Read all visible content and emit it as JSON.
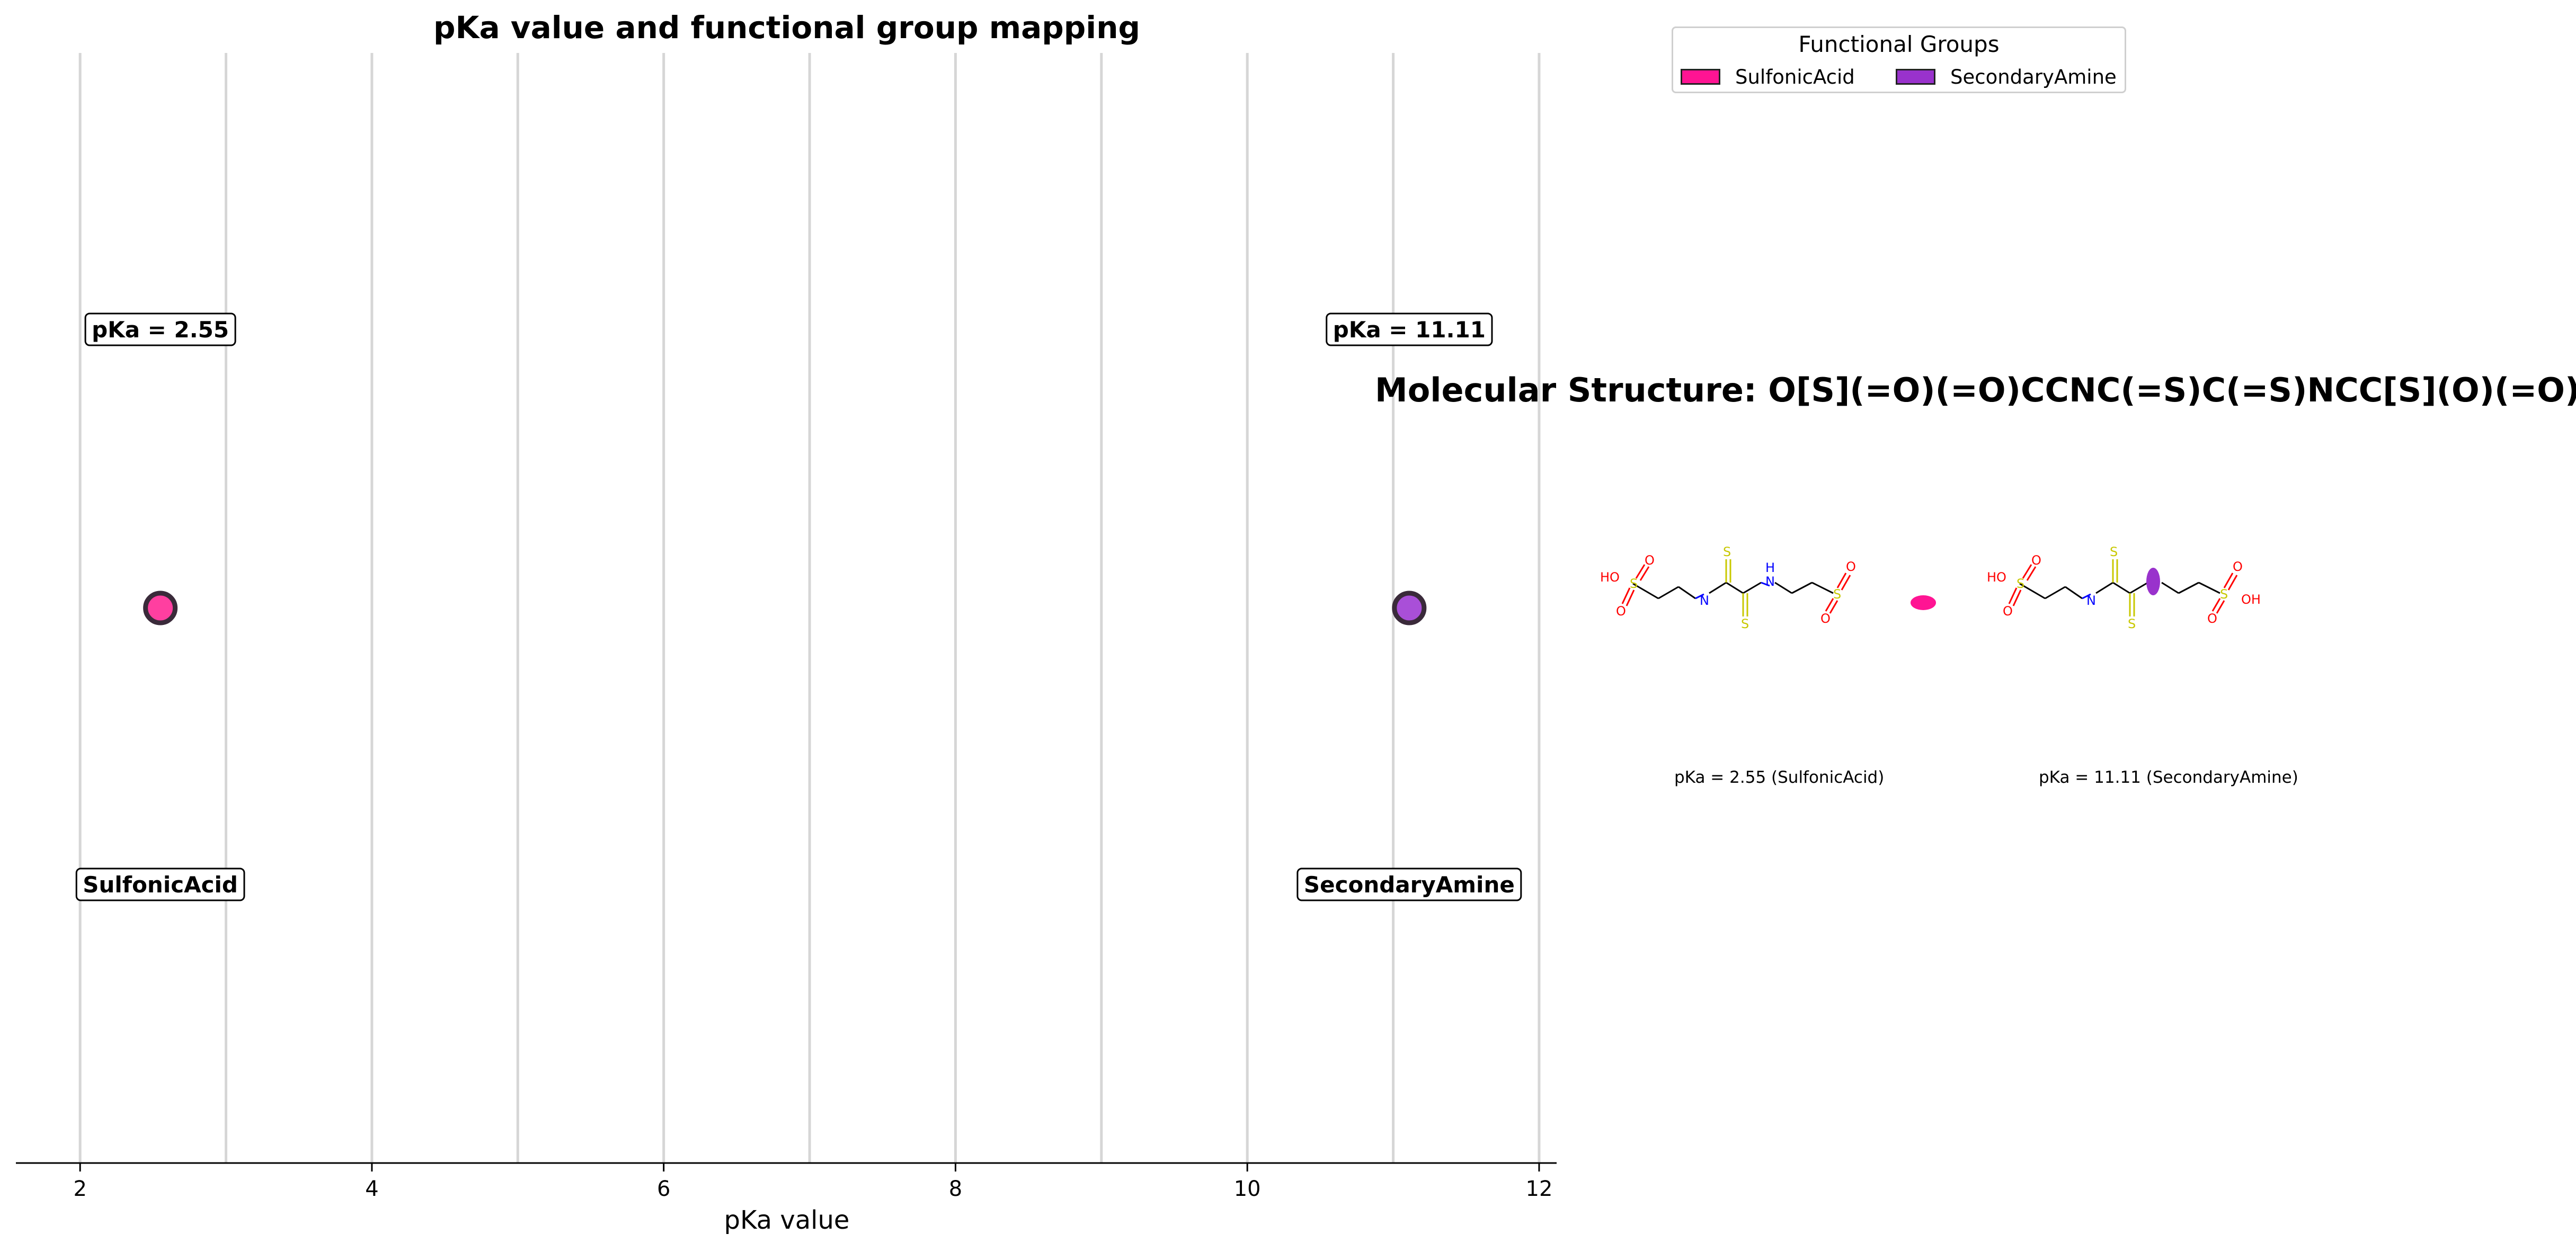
{
  "chart_data": {
    "type": "scatter",
    "title": "pKa value and functional group mapping",
    "xlabel": "pKa value",
    "xlim": [
      1.56,
      12.12
    ],
    "xticks": [
      2,
      4,
      6,
      8,
      10,
      12
    ],
    "grid": "vertical",
    "points": [
      {
        "x": 2.55,
        "group": "SulfonicAcid",
        "value_label": "pKa = 2.55",
        "color": "#ff3fa0"
      },
      {
        "x": 11.11,
        "group": "SecondaryAmine",
        "value_label": "pKa = 11.11",
        "color": "#a94fd8"
      }
    ],
    "legend": {
      "title": "Functional Groups",
      "placement": "top-right",
      "entries": [
        {
          "label": "SulfonicAcid",
          "color": "#ff1493"
        },
        {
          "label": "SecondaryAmine",
          "color": "#9932cc"
        }
      ]
    }
  },
  "molecule": {
    "title": "Molecular Structure: O[S](=O)(=O)CCNC(=S)C(=S)NCC[S](O)(=O)=O",
    "captions": [
      "pKa = 2.55 (SulfonicAcid)",
      "pKa = 11.11 (SecondaryAmine)"
    ],
    "atom_labels": {
      "hydroxyl": "HO",
      "hydroxyl_right": "OH",
      "oxygen": "O",
      "sulfur": "S",
      "nitrogen": "N",
      "hydrogen": "H"
    },
    "colors": {
      "sulfur": "#c8c800",
      "oxygen": "#ff0000",
      "nitrogen": "#0000ff",
      "bond": "#000000"
    }
  }
}
